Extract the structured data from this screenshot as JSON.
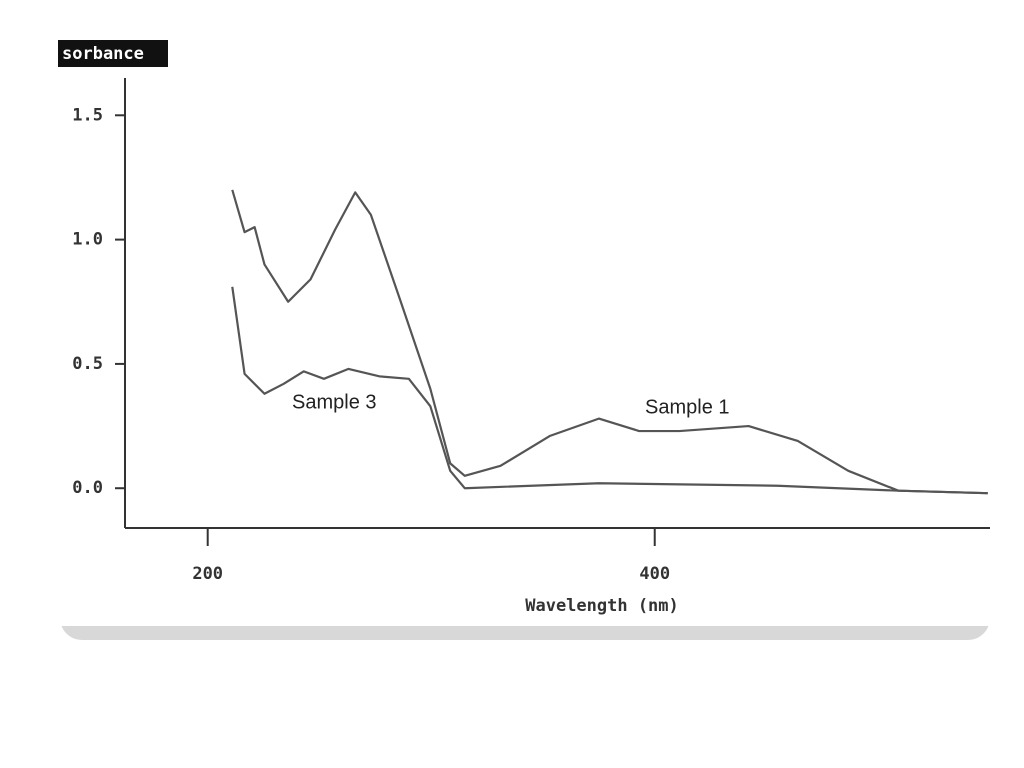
{
  "chart_data": {
    "type": "line",
    "y_label": "sorbance",
    "x_label": "Wavelength (nm)",
    "annotations": [
      "Sample 3",
      "Sample 1"
    ],
    "xlim": [
      163,
      550
    ],
    "xticks": [
      200,
      400
    ],
    "ylim": [
      -0.16,
      1.65
    ],
    "yticks": [
      {
        "value": 0,
        "label": "0.0"
      },
      0.5,
      {
        "value": 1,
        "label": "1.0"
      },
      1.5
    ],
    "series": [
      {
        "name": "Sample 1",
        "color": "#555555",
        "x": [
          211,
          216.5,
          221,
          225.4,
          236,
          246,
          257,
          266,
          273,
          286,
          299.6,
          308.5,
          315,
          331,
          353,
          375,
          393,
          411,
          442,
          464,
          486.6,
          509,
          549
        ],
        "values": [
          1.2,
          1.03,
          1.05,
          0.9,
          0.75,
          0.84,
          1.04,
          1.19,
          1.1,
          0.76,
          0.4,
          0.1,
          0.05,
          0.09,
          0.21,
          0.28,
          0.23,
          0.23,
          0.25,
          0.19,
          0.07,
          -0.01,
          -0.02
        ]
      },
      {
        "name": "Sample 3",
        "color": "#555555",
        "x": [
          211,
          216.5,
          225.4,
          234,
          243,
          252,
          263,
          276.8,
          290,
          299.6,
          308.5,
          315,
          375,
          455,
          509,
          549
        ],
        "values": [
          0.81,
          0.46,
          0.38,
          0.42,
          0.47,
          0.44,
          0.48,
          0.45,
          0.44,
          0.33,
          0.07,
          0,
          0.02,
          0.01,
          -0.01,
          -0.02
        ]
      }
    ]
  }
}
